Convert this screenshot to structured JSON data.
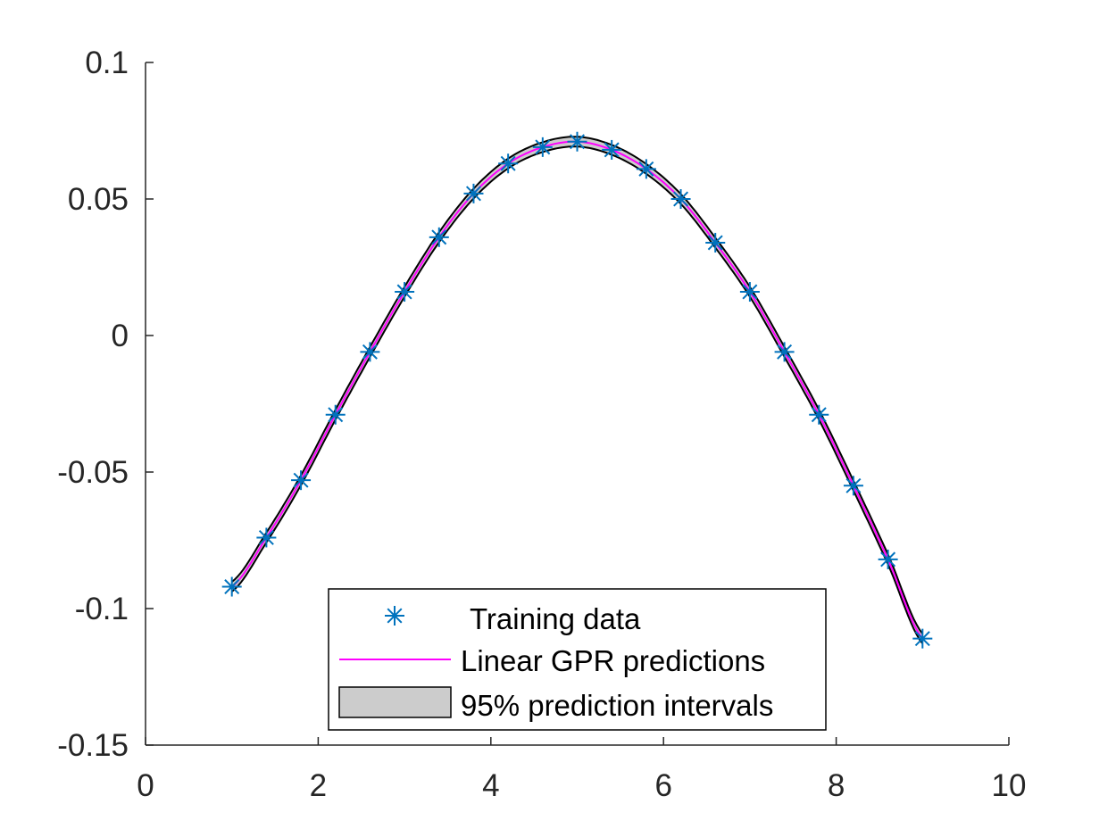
{
  "chart_data": {
    "type": "line",
    "xlim": [
      0,
      10
    ],
    "ylim": [
      -0.15,
      0.1
    ],
    "xticks": [
      0,
      2,
      4,
      6,
      8,
      10
    ],
    "xtick_labels": [
      "0",
      "2",
      "4",
      "6",
      "8",
      "10"
    ],
    "yticks": [
      -0.15,
      -0.1,
      -0.05,
      0,
      0.05,
      0.1
    ],
    "ytick_labels": [
      "-0.15",
      "-0.1",
      "-0.05",
      "0",
      "0.05",
      "0.1"
    ],
    "grid": false,
    "legend_position": "bottom-center",
    "series": [
      {
        "name": "Training data",
        "kind": "scatter",
        "marker": "asterisk",
        "color": "#0072BD",
        "x": [
          1.0,
          1.4,
          1.8,
          2.2,
          2.6,
          3.0,
          3.4,
          3.8,
          4.2,
          4.6,
          5.0,
          5.4,
          5.8,
          6.2,
          6.6,
          7.0,
          7.4,
          7.8,
          8.2,
          8.6,
          9.0
        ],
        "y": [
          -0.092,
          -0.074,
          -0.053,
          -0.029,
          -0.006,
          0.016,
          0.036,
          0.052,
          0.063,
          0.069,
          0.071,
          0.068,
          0.061,
          0.05,
          0.034,
          0.016,
          -0.006,
          -0.029,
          -0.055,
          -0.082,
          -0.111
        ]
      },
      {
        "name": "Linear GPR predictions",
        "kind": "line",
        "color": "#FF00FF",
        "x": [
          1.0,
          1.4,
          1.8,
          2.2,
          2.6,
          3.0,
          3.4,
          3.8,
          4.2,
          4.6,
          5.0,
          5.4,
          5.8,
          6.2,
          6.6,
          7.0,
          7.4,
          7.8,
          8.2,
          8.6,
          9.0
        ],
        "y": [
          -0.092,
          -0.074,
          -0.053,
          -0.029,
          -0.006,
          0.016,
          0.036,
          0.052,
          0.063,
          0.069,
          0.071,
          0.068,
          0.061,
          0.05,
          0.034,
          0.016,
          -0.006,
          -0.029,
          -0.055,
          -0.082,
          -0.111
        ]
      },
      {
        "name": "95% prediction intervals",
        "kind": "band",
        "fill": "#cccccc",
        "edge": "#000000",
        "half_width": 0.0018
      }
    ],
    "legend": [
      {
        "label": "Training data",
        "symbol": "asterisk"
      },
      {
        "label": "Linear GPR predictions",
        "symbol": "line"
      },
      {
        "label": "95% prediction intervals",
        "symbol": "patch"
      }
    ]
  }
}
